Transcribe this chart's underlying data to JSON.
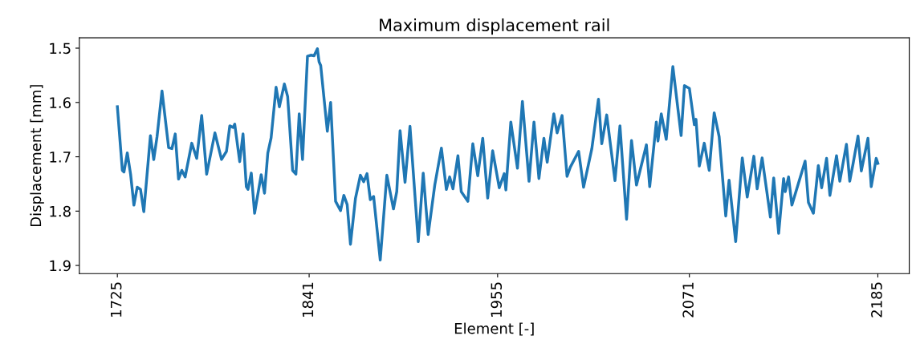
{
  "chart_data": {
    "type": "line",
    "title": "Maximum displacement rail",
    "xlabel": "Element [-]",
    "ylabel": "Displacement [mm]",
    "xlim": [
      1702,
      2204
    ],
    "ylim": [
      1.915,
      1.481
    ],
    "xticks": [
      1725,
      1841,
      1955,
      2071,
      2185
    ],
    "yticks": [
      1.5,
      1.6,
      1.7,
      1.8,
      1.9
    ],
    "grid": false,
    "marker": "none",
    "line_style": "solid",
    "series": [
      {
        "color": "#1f77b4",
        "x": [
          1725,
          1728,
          1729,
          1731,
          1733,
          1735,
          1737,
          1739,
          1741,
          1745,
          1747,
          1749,
          1752,
          1756,
          1758,
          1760,
          1762,
          1764,
          1766,
          1770,
          1773,
          1776,
          1779,
          1784,
          1788,
          1791,
          1793,
          1795,
          1796,
          1799,
          1801,
          1803,
          1804,
          1806,
          1808,
          1812,
          1814,
          1816,
          1818,
          1821,
          1823,
          1826,
          1828,
          1831,
          1833,
          1835,
          1837,
          1840,
          1842,
          1844,
          1846,
          1847,
          1848,
          1852,
          1854,
          1857,
          1860,
          1862,
          1864,
          1866,
          1869,
          1872,
          1874,
          1876,
          1878,
          1880,
          1884,
          1888,
          1892,
          1894,
          1896,
          1899,
          1902,
          1907,
          1910,
          1913,
          1917,
          1921,
          1924,
          1926,
          1928,
          1931,
          1933,
          1937,
          1940,
          1943,
          1946,
          1949,
          1952,
          1956,
          1959,
          1960,
          1963,
          1967,
          1970,
          1974,
          1977,
          1980,
          1983,
          1985,
          1989,
          1991,
          1994,
          1997,
          1999,
          2004,
          2007,
          2012,
          2016,
          2018,
          2021,
          2026,
          2029,
          2033,
          2036,
          2039,
          2042,
          2045,
          2047,
          2051,
          2052,
          2054,
          2057,
          2061,
          2066,
          2068,
          2071,
          2074,
          2075,
          2077,
          2080,
          2083,
          2086,
          2089,
          2093,
          2095,
          2099,
          2103,
          2106,
          2110,
          2112,
          2115,
          2120,
          2122,
          2125,
          2128,
          2129,
          2131,
          2133,
          2141,
          2143,
          2146,
          2149,
          2151,
          2154,
          2156,
          2160,
          2162,
          2166,
          2168,
          2170,
          2173,
          2175,
          2179,
          2181,
          2184,
          2185
        ],
        "values": [
          1.608,
          1.725,
          1.728,
          1.693,
          1.732,
          1.789,
          1.756,
          1.76,
          1.801,
          1.661,
          1.705,
          1.663,
          1.579,
          1.683,
          1.685,
          1.658,
          1.741,
          1.725,
          1.737,
          1.675,
          1.703,
          1.624,
          1.732,
          1.656,
          1.705,
          1.69,
          1.643,
          1.646,
          1.64,
          1.709,
          1.658,
          1.755,
          1.76,
          1.73,
          1.804,
          1.733,
          1.767,
          1.693,
          1.665,
          1.572,
          1.608,
          1.566,
          1.589,
          1.725,
          1.732,
          1.621,
          1.705,
          1.515,
          1.513,
          1.514,
          1.501,
          1.525,
          1.532,
          1.653,
          1.6,
          1.782,
          1.799,
          1.771,
          1.788,
          1.861,
          1.777,
          1.734,
          1.746,
          1.731,
          1.779,
          1.773,
          1.89,
          1.734,
          1.796,
          1.764,
          1.652,
          1.747,
          1.644,
          1.856,
          1.73,
          1.843,
          1.752,
          1.684,
          1.76,
          1.737,
          1.759,
          1.698,
          1.764,
          1.782,
          1.676,
          1.735,
          1.666,
          1.776,
          1.689,
          1.757,
          1.731,
          1.761,
          1.636,
          1.721,
          1.598,
          1.745,
          1.636,
          1.74,
          1.666,
          1.71,
          1.621,
          1.656,
          1.624,
          1.736,
          1.719,
          1.69,
          1.756,
          1.685,
          1.594,
          1.676,
          1.623,
          1.744,
          1.643,
          1.815,
          1.67,
          1.752,
          1.715,
          1.678,
          1.755,
          1.636,
          1.671,
          1.621,
          1.668,
          1.534,
          1.661,
          1.569,
          1.574,
          1.641,
          1.631,
          1.717,
          1.675,
          1.725,
          1.619,
          1.663,
          1.809,
          1.743,
          1.856,
          1.702,
          1.774,
          1.699,
          1.759,
          1.702,
          1.811,
          1.739,
          1.841,
          1.74,
          1.764,
          1.737,
          1.789,
          1.708,
          1.784,
          1.804,
          1.716,
          1.757,
          1.703,
          1.771,
          1.698,
          1.745,
          1.677,
          1.745,
          1.713,
          1.662,
          1.726,
          1.666,
          1.755,
          1.703,
          1.712
        ]
      }
    ]
  }
}
